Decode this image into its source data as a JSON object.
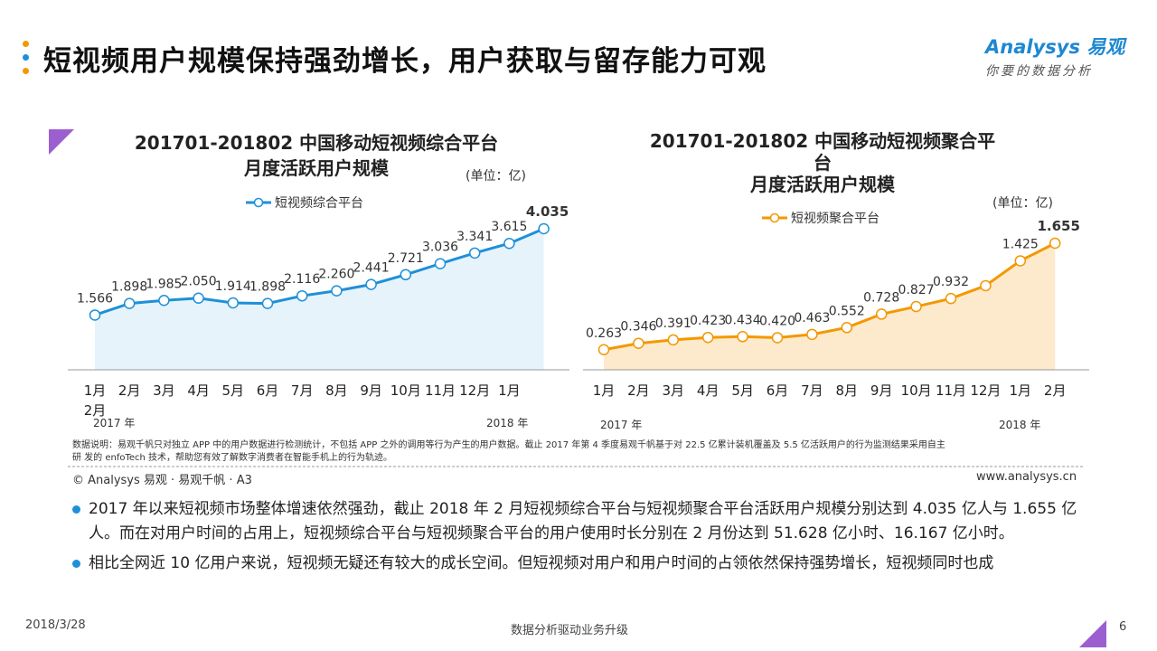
{
  "header": {
    "title": "短视频用户规模保持强劲增长，用户获取与留存能力可观",
    "logo_text": "Analysys 易观",
    "logo_tagline": "你要的数据分析",
    "dot_colors": [
      "#f39800",
      "#1e90d8",
      "#f39800"
    ]
  },
  "chart_data": [
    {
      "type": "area",
      "title_line1": "201701-201802 中国移动短视频综合平台",
      "title_line2": "月度活跃用户规模",
      "unit": "(单位：亿)",
      "categories": [
        "1月",
        "2月",
        "3月",
        "4月",
        "5月",
        "6月",
        "7月",
        "8月",
        "9月",
        "10月",
        "11月",
        "12月",
        "1月",
        "2月"
      ],
      "year_labels": [
        "2017 年",
        "2018 年"
      ],
      "series": [
        {
          "name": "短视频综合平台",
          "values": [
            1.566,
            1.898,
            1.985,
            2.05,
            1.914,
            1.898,
            2.116,
            2.26,
            2.441,
            2.721,
            3.036,
            3.341,
            3.615,
            4.035
          ],
          "labels": [
            "1.566",
            "1.898",
            "1.985",
            "2.050",
            "1.914",
            "1.898",
            "2.116",
            "2.260",
            "2.441",
            "2.721",
            "3.036",
            "3.341",
            "3.615",
            "4.035"
          ]
        }
      ],
      "ylim": [
        0,
        4.035
      ],
      "color": "#1e90d8",
      "fill": "#e6f3fb",
      "grid": false,
      "legend": "top"
    },
    {
      "type": "area",
      "title_line1": "201701-201802 中国移动短视频聚合平",
      "title_line1b": "台",
      "title_line2": "月度活跃用户规模",
      "unit": "(单位：亿)",
      "categories": [
        "1月",
        "2月",
        "3月",
        "4月",
        "5月",
        "6月",
        "7月",
        "8月",
        "9月",
        "10月",
        "11月",
        "12月",
        "1月",
        "2月"
      ],
      "year_labels": [
        "2017 年",
        "2018 年"
      ],
      "series": [
        {
          "name": "短视频聚合平台",
          "values": [
            0.263,
            0.346,
            0.391,
            0.423,
            0.434,
            0.42,
            0.463,
            0.552,
            0.728,
            0.827,
            0.932,
            1.1,
            1.425,
            1.655
          ],
          "labels": [
            "0.263",
            "0.346",
            "0.391",
            "0.423",
            "0.434",
            "0.420",
            "0.463",
            "0.552",
            "0.728",
            "0.827",
            "0.932",
            "",
            "1.425",
            "1.655"
          ]
        }
      ],
      "ylim": [
        0,
        1.655
      ],
      "color": "#f39800",
      "fill": "#fde9cc",
      "grid": false,
      "legend": "top"
    }
  ],
  "notes": {
    "line1": "数据说明：易观千帆只对独立 APP 中的用户数据进行检测统计，不包括 APP 之外的调用等行为产生的用户数据。截止 2017 年第 4 季度易观千帆基于对 22.5 亿累计装机覆盖及 5.5 亿活跃用户的行为监测结果采用自主",
    "line2": "研 发的 enfoTech 技术，帮助您有效了解数字消费者在智能手机上的行为轨迹。",
    "copyright": "© Analysys 易观 · 易观千帆 · A3",
    "website": "www.analysys.cn"
  },
  "bullets": [
    "2017 年以来短视频市场整体增速依然强劲，截止 2018 年 2 月短视频综合平台与短视频聚合平台活跃用户规模分别达到 4.035 亿人与 1.655 亿人。而在对用户时间的占用上，短视频综合平台与短视频聚合平台的用户使用时长分别在 2 月份达到 51.628 亿小时、16.167 亿小时。",
    "相比全网近 10 亿用户来说，短视频无疑还有较大的成长空间。但短视频对用户和用户时间的占领依然保持强势增长，短视频同时也成"
  ],
  "footer": {
    "date": "2018/3/28",
    "center": "数据分析驱动业务升级",
    "page": "6"
  },
  "accent": "#9b5fd0"
}
